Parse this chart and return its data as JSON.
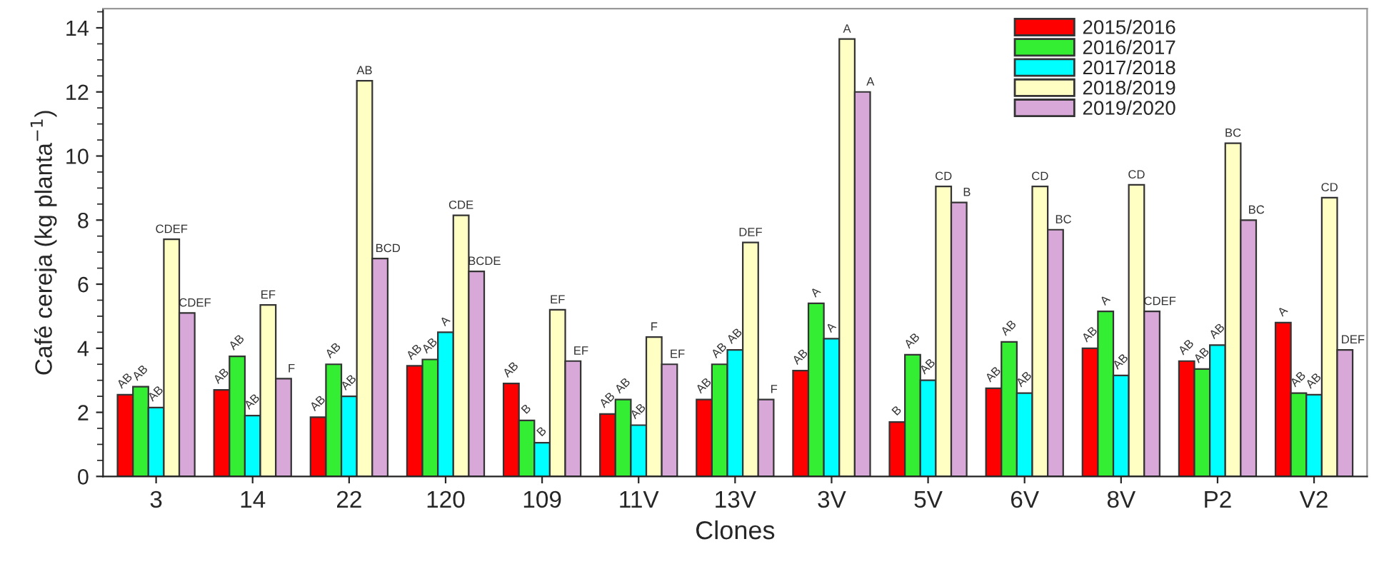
{
  "chart_data": {
    "type": "bar",
    "xlabel": "Clones",
    "ylabel": "Café cereja (kg planta$^{−1}$)",
    "categories": [
      "3",
      "14",
      "22",
      "120",
      "109",
      "11V",
      "13V",
      "3V",
      "5V",
      "6V",
      "8V",
      "P2",
      "V2"
    ],
    "series": [
      {
        "name": "2015/2016",
        "color": "#ff0000",
        "values": [
          2.55,
          2.7,
          1.85,
          3.45,
          2.9,
          1.95,
          2.4,
          3.3,
          1.7,
          2.75,
          4.0,
          3.6,
          4.8
        ],
        "value_labels": [
          "AB",
          "AB",
          "AB",
          "AB",
          "AB",
          "AB",
          "AB",
          "AB",
          "B",
          "AB",
          "AB",
          "AB",
          "A"
        ]
      },
      {
        "name": "2016/2017",
        "color": "#33ee33",
        "values": [
          2.8,
          3.75,
          3.5,
          3.65,
          1.75,
          2.4,
          3.5,
          5.4,
          3.8,
          4.2,
          5.15,
          3.35,
          2.6
        ],
        "value_labels": [
          "AB",
          "AB",
          "AB",
          "AB",
          "B",
          "AB",
          "AB",
          "A",
          "AB",
          "AB",
          "A",
          "AB",
          "AB"
        ]
      },
      {
        "name": "2017/2018",
        "color": "#00ffff",
        "values": [
          2.15,
          1.9,
          2.5,
          4.5,
          1.05,
          1.6,
          3.95,
          4.3,
          3.0,
          2.6,
          3.15,
          4.1,
          2.55
        ],
        "value_labels": [
          "AB",
          "AB",
          "AB",
          "A",
          "B",
          "AB",
          "AB",
          "A",
          "AB",
          "AB",
          "AB",
          "AB",
          "AB"
        ]
      },
      {
        "name": "2018/2019",
        "color": "#ffffc4",
        "values": [
          7.4,
          5.35,
          12.35,
          8.15,
          5.2,
          4.35,
          7.3,
          13.65,
          9.05,
          9.05,
          9.1,
          10.4,
          8.7
        ],
        "value_labels": [
          "CDEF",
          "EF",
          "AB",
          "CDE",
          "EF",
          "F",
          "DEF",
          "A",
          "CD",
          "CD",
          "CD",
          "BC",
          "CD"
        ]
      },
      {
        "name": "2019/2020",
        "color": "#d8a8d8",
        "values": [
          5.1,
          3.05,
          6.8,
          6.4,
          3.6,
          3.5,
          2.4,
          12.0,
          8.55,
          7.7,
          5.15,
          8.0,
          3.95
        ],
        "value_labels": [
          "CDEF",
          "F",
          "BCD",
          "BCDE",
          "EF",
          "EF",
          "F",
          "A",
          "B",
          "BC",
          "CDEF",
          "BC",
          "DEF"
        ]
      }
    ],
    "ylim": [
      0,
      14.6
    ],
    "yticks": [
      0,
      2,
      4,
      6,
      8,
      10,
      12,
      14
    ],
    "grid": false,
    "legend": "top right"
  }
}
